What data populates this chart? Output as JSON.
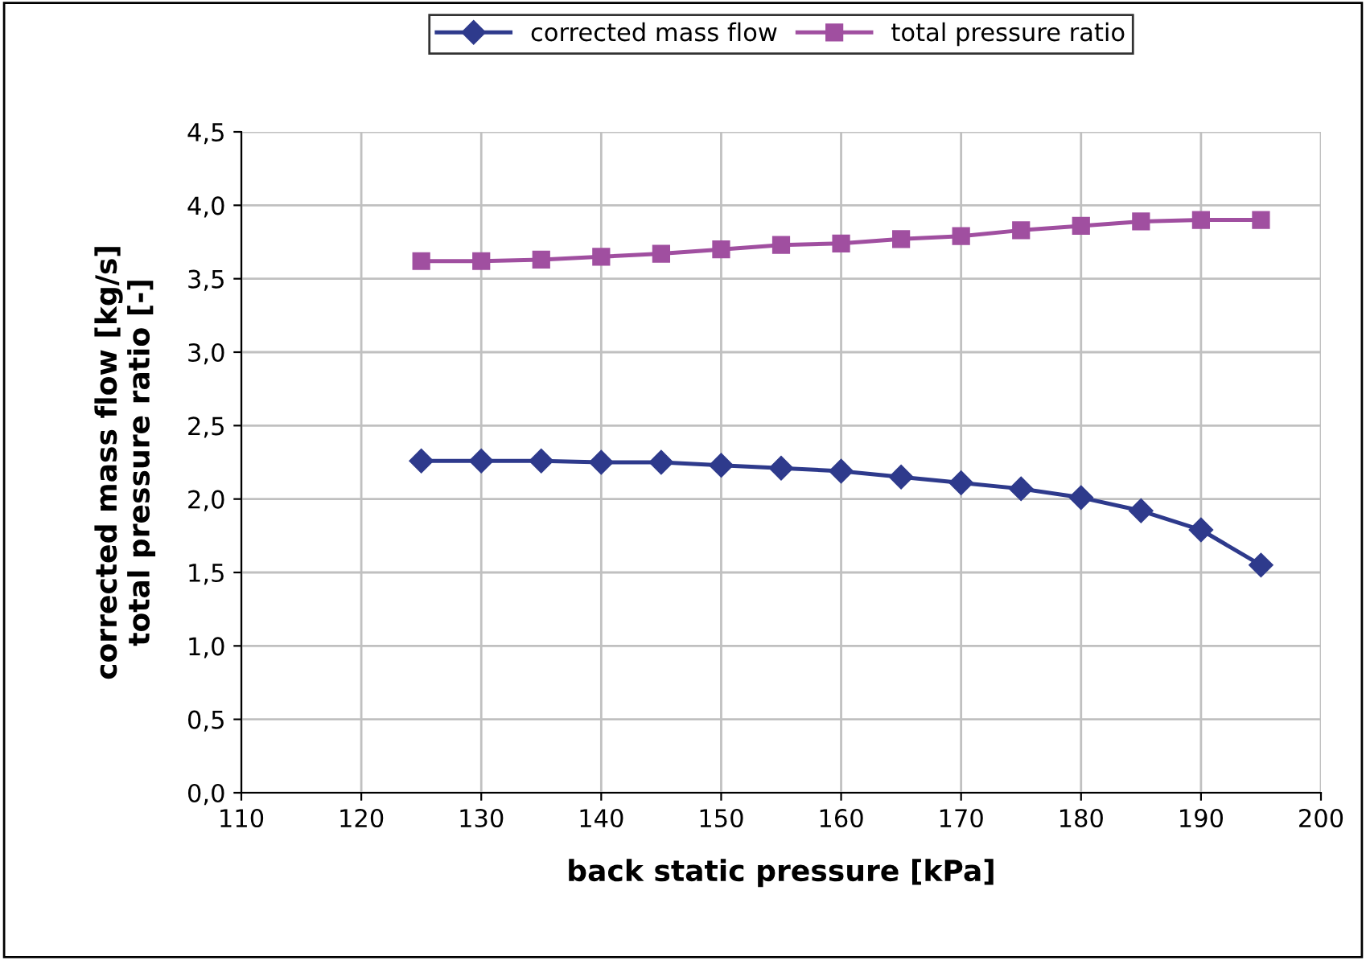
{
  "chart_data": {
    "type": "line",
    "xlabel": "back static pressure [kPa]",
    "ylabel": "corrected mass flow [kg/s]\ntotal pressure ratio [-]",
    "x": [
      125,
      130,
      135,
      140,
      145,
      150,
      155,
      160,
      165,
      170,
      175,
      180,
      185,
      190,
      195
    ],
    "series": [
      {
        "name": "corrected mass flow",
        "color": "#2e3a8c",
        "marker": "diamond",
        "values": [
          2.26,
          2.26,
          2.26,
          2.25,
          2.25,
          2.23,
          2.21,
          2.19,
          2.15,
          2.11,
          2.07,
          2.01,
          1.92,
          1.79,
          1.55
        ]
      },
      {
        "name": "total pressure ratio",
        "color": "#a04fa0",
        "marker": "square",
        "values": [
          3.62,
          3.62,
          3.63,
          3.65,
          3.67,
          3.7,
          3.73,
          3.74,
          3.77,
          3.79,
          3.83,
          3.86,
          3.89,
          3.9,
          3.9
        ]
      }
    ],
    "xlim": [
      110,
      200
    ],
    "xticks": [
      110,
      120,
      130,
      140,
      150,
      160,
      170,
      180,
      190,
      200
    ],
    "ylim": [
      0,
      4.5
    ],
    "yticks": [
      {
        "value": 0,
        "label": "0,0"
      },
      {
        "value": 0.5,
        "label": "0,5"
      },
      {
        "value": 1.0,
        "label": "1,0"
      },
      {
        "value": 1.5,
        "label": "1,5"
      },
      {
        "value": 2.0,
        "label": "2,0"
      },
      {
        "value": 2.5,
        "label": "2,5"
      },
      {
        "value": 3.0,
        "label": "3,0"
      },
      {
        "value": 3.5,
        "label": "3,5"
      },
      {
        "value": 4.0,
        "label": "4,0"
      },
      {
        "value": 4.5,
        "label": "4,5"
      }
    ],
    "grid": true,
    "legend": "top",
    "line_style": "solid"
  }
}
